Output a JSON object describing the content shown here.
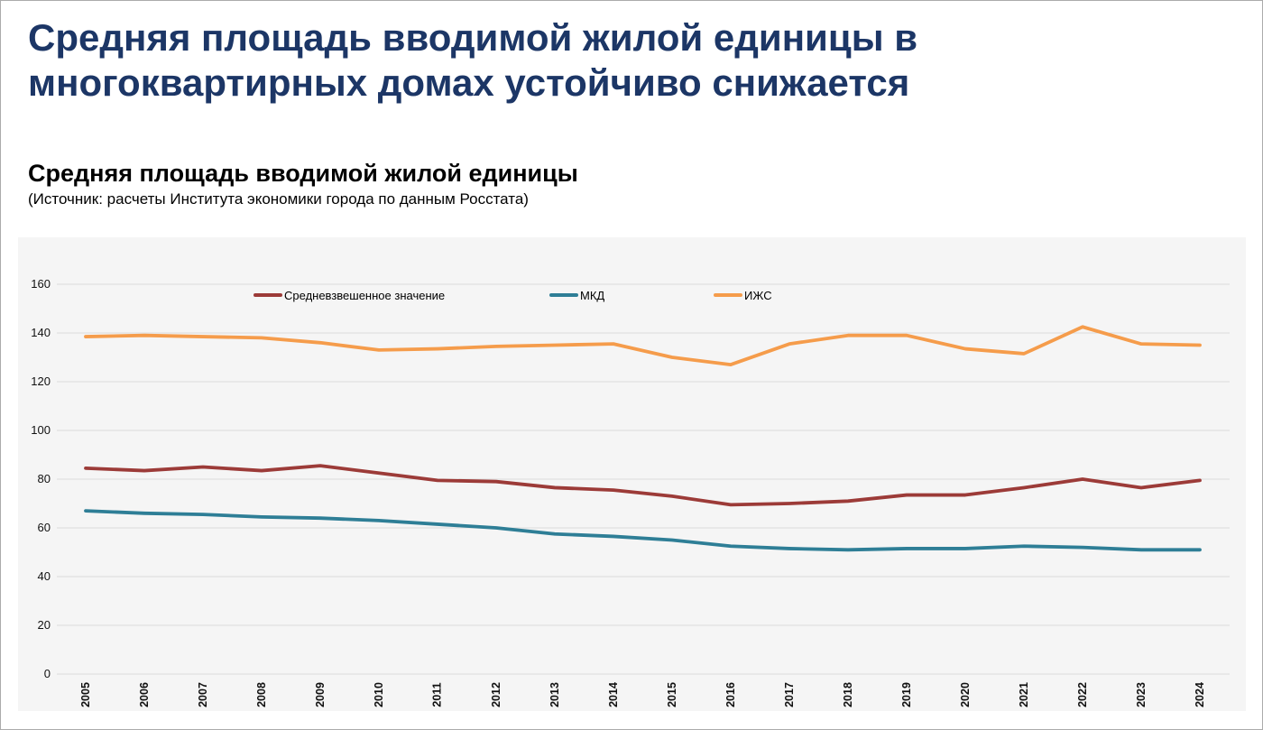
{
  "header": {
    "title_line1": "Средняя площадь вводимой жилой единицы в",
    "title_line2": "многоквартирных домах устойчиво снижается",
    "title_color": "#1c3666"
  },
  "chart_heading": "Средняя площадь вводимой жилой единицы",
  "chart_source": "(Источник: расчеты Института экономики города по данным Росстата)",
  "chart_data": {
    "type": "line",
    "title": "Средняя площадь вводимой жилой единицы",
    "x": [
      "2005",
      "2006",
      "2007",
      "2008",
      "2009",
      "2010",
      "2011",
      "2012",
      "2013",
      "2014",
      "2015",
      "2016",
      "2017",
      "2018",
      "2019",
      "2020",
      "2021",
      "2022",
      "2023",
      "2024"
    ],
    "series": [
      {
        "name": "Средневзвешенное значение",
        "color": "#9c3b38",
        "values": [
          84.5,
          83.5,
          85,
          83.5,
          85.5,
          82.5,
          79.5,
          79,
          76.5,
          75.5,
          73,
          69.5,
          70,
          71,
          73.5,
          73.5,
          76.5,
          80,
          76.5,
          79.5
        ]
      },
      {
        "name": "МКД",
        "color": "#2e7e96",
        "values": [
          67,
          66,
          65.5,
          64.5,
          64,
          63,
          61.5,
          60,
          57.5,
          56.5,
          55,
          52.5,
          51.5,
          51,
          51.5,
          51.5,
          52.5,
          52,
          51,
          51
        ]
      },
      {
        "name": "ИЖС",
        "color": "#f59c4b",
        "values": [
          138.5,
          139,
          138.5,
          138,
          136,
          133,
          133.5,
          134.5,
          135,
          135.5,
          130,
          127,
          135.5,
          139,
          139,
          133.5,
          131.5,
          142.5,
          135.5,
          135
        ]
      }
    ],
    "ylim": [
      0,
      160
    ],
    "yticks": [
      0,
      20,
      40,
      60,
      80,
      100,
      120,
      140,
      160
    ],
    "xlabel": "",
    "ylabel": "",
    "grid": true,
    "gridline_color": "#dcdcdc",
    "panel_background": "#f5f5f5",
    "legend_position": "top-inside-horizontal"
  }
}
